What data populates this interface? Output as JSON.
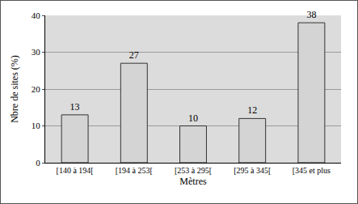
{
  "chart_data": {
    "type": "bar",
    "x_label": "Mètres",
    "y_label": "Nbre de sites (%)",
    "categories": [
      "[140 à 194[",
      "[194 à 253[",
      "[253 à 295[",
      "[295 à 345[",
      "[345 et plus"
    ],
    "values": [
      13,
      27,
      10,
      12,
      38
    ],
    "color": "#d4d4d4",
    "ylim": [
      0,
      40
    ],
    "yticks": [
      0,
      10,
      20,
      30,
      40
    ],
    "grid": true,
    "data_labels": true
  }
}
